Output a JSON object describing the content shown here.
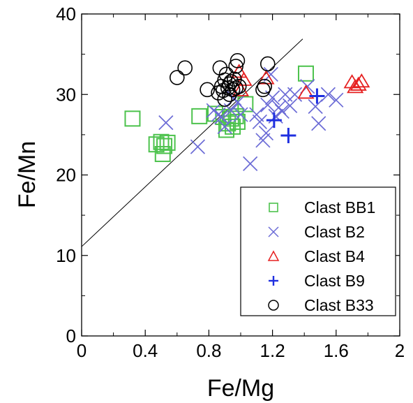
{
  "chart_data": {
    "type": "scatter",
    "xlabel": "Fe/Mg",
    "ylabel": "Fe/Mn",
    "xlim": [
      0,
      2
    ],
    "ylim": [
      0,
      40
    ],
    "x_ticks": [
      {
        "value": 0,
        "label": "0"
      },
      {
        "value": 0.4,
        "label": "0.4"
      },
      {
        "value": 0.8,
        "label": "0.8"
      },
      {
        "value": 1.2,
        "label": "1.2"
      },
      {
        "value": 1.6,
        "label": "1.6"
      },
      {
        "value": 2,
        "label": "2"
      }
    ],
    "y_ticks": [
      {
        "value": 0,
        "label": "0"
      },
      {
        "value": 10,
        "label": "10"
      },
      {
        "value": 20,
        "label": "20"
      },
      {
        "value": 30,
        "label": "30"
      },
      {
        "value": 40,
        "label": "40"
      }
    ],
    "grid": false,
    "legend_position": "bottom-right",
    "reference_line": {
      "from": [
        0,
        11.1
      ],
      "to": [
        1.39,
        36.9
      ]
    },
    "series": [
      {
        "name": "Clast BB1",
        "marker": "square",
        "color": "#4cc24c",
        "points": [
          [
            0.32,
            27.0
          ],
          [
            0.47,
            23.8
          ],
          [
            0.5,
            24.1
          ],
          [
            0.52,
            23.6
          ],
          [
            0.51,
            22.6
          ],
          [
            0.54,
            24.0
          ],
          [
            0.74,
            27.3
          ],
          [
            0.84,
            27.6
          ],
          [
            0.89,
            27.2
          ],
          [
            0.91,
            25.6
          ],
          [
            0.92,
            26.4
          ],
          [
            0.94,
            27.0
          ],
          [
            0.95,
            26.0
          ],
          [
            0.97,
            27.3
          ],
          [
            0.98,
            26.6
          ],
          [
            1.03,
            28.8
          ],
          [
            1.41,
            32.6
          ]
        ]
      },
      {
        "name": "Clast B2",
        "marker": "x",
        "color": "#6b6bd6",
        "points": [
          [
            0.53,
            26.5
          ],
          [
            0.73,
            23.5
          ],
          [
            0.83,
            28.0
          ],
          [
            0.86,
            27.5
          ],
          [
            0.88,
            27.2
          ],
          [
            0.9,
            26.0
          ],
          [
            0.94,
            28.0
          ],
          [
            0.96,
            29.5
          ],
          [
            0.98,
            29.0
          ],
          [
            1.0,
            27.5
          ],
          [
            1.06,
            21.4
          ],
          [
            1.1,
            27.5
          ],
          [
            1.12,
            26.6
          ],
          [
            1.14,
            24.3
          ],
          [
            1.16,
            25.2
          ],
          [
            1.17,
            28.7
          ],
          [
            1.2,
            29.6
          ],
          [
            1.22,
            27.3
          ],
          [
            1.24,
            28.4
          ],
          [
            1.26,
            27.9
          ],
          [
            1.28,
            30.0
          ],
          [
            1.31,
            28.6
          ],
          [
            1.34,
            30.0
          ],
          [
            1.42,
            31.0
          ],
          [
            1.47,
            28.5
          ],
          [
            1.49,
            26.4
          ],
          [
            1.55,
            30.0
          ],
          [
            1.6,
            29.3
          ],
          [
            1.19,
            32.5
          ]
        ]
      },
      {
        "name": "Clast B4",
        "marker": "triangle",
        "color": "#e62020",
        "points": [
          [
            0.99,
            32.8
          ],
          [
            1.0,
            30.5
          ],
          [
            1.02,
            31.8
          ],
          [
            1.16,
            32.0
          ],
          [
            1.41,
            30.2
          ],
          [
            1.7,
            31.5
          ],
          [
            1.72,
            30.9
          ],
          [
            1.74,
            31.2
          ],
          [
            1.76,
            31.6
          ]
        ]
      },
      {
        "name": "Clast B9",
        "marker": "plus",
        "color": "#1f2fe0",
        "points": [
          [
            1.21,
            26.8
          ],
          [
            1.3,
            24.9
          ],
          [
            1.48,
            29.8
          ]
        ]
      },
      {
        "name": "Clast B33",
        "marker": "circle",
        "color": "#000000",
        "points": [
          [
            0.6,
            32.1
          ],
          [
            0.65,
            33.3
          ],
          [
            0.79,
            30.6
          ],
          [
            0.86,
            30.2
          ],
          [
            0.87,
            33.3
          ],
          [
            0.88,
            31.0
          ],
          [
            0.89,
            30.5
          ],
          [
            0.9,
            31.8
          ],
          [
            0.9,
            29.4
          ],
          [
            0.91,
            32.5
          ],
          [
            0.92,
            30.8
          ],
          [
            0.93,
            31.3
          ],
          [
            0.93,
            30.0
          ],
          [
            0.94,
            31.6
          ],
          [
            0.95,
            30.6
          ],
          [
            0.96,
            31.9
          ],
          [
            0.97,
            33.5
          ],
          [
            0.97,
            30.8
          ],
          [
            0.98,
            34.2
          ],
          [
            0.99,
            31.0
          ],
          [
            1.14,
            30.6
          ],
          [
            1.15,
            31.0
          ],
          [
            1.17,
            33.8
          ]
        ]
      }
    ]
  }
}
